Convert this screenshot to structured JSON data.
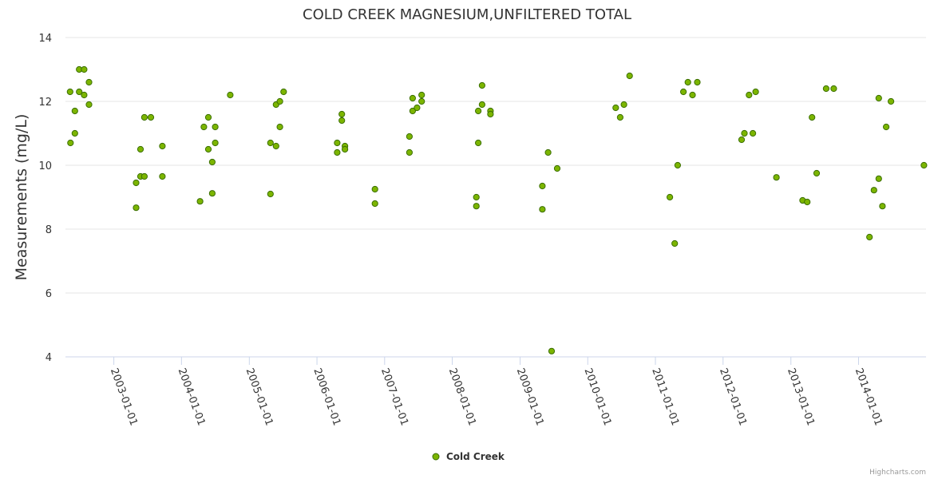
{
  "chart_data": {
    "type": "scatter",
    "title": "COLD CREEK MAGNESIUM,UNFILTERED TOTAL",
    "ylabel": "Measurements (mg/L)",
    "xlabel": "",
    "ylim": [
      4,
      14
    ],
    "yticks": [
      4,
      6,
      8,
      10,
      12,
      14
    ],
    "xlim": [
      "2002-04-15",
      "2014-12-31"
    ],
    "xticks": [
      "2003-01-01",
      "2004-01-01",
      "2005-01-01",
      "2006-01-01",
      "2007-01-01",
      "2008-01-01",
      "2009-01-01",
      "2010-01-01",
      "2011-01-01",
      "2012-01-01",
      "2013-01-01",
      "2014-01-01"
    ],
    "grid": true,
    "legend": "bottom-center",
    "series": [
      {
        "name": "Cold Creek",
        "color": "#7cb500",
        "marker_stroke": "#3a6e00",
        "points": [
          [
            "2002-05-10",
            12.3
          ],
          [
            "2002-05-12",
            10.7
          ],
          [
            "2002-06-05",
            11.7
          ],
          [
            "2002-06-05",
            11.0
          ],
          [
            "2002-06-28",
            13.0
          ],
          [
            "2002-06-28",
            12.3
          ],
          [
            "2002-07-25",
            13.0
          ],
          [
            "2002-07-25",
            12.2
          ],
          [
            "2002-08-20",
            12.6
          ],
          [
            "2002-08-20",
            11.9
          ],
          [
            "2003-05-01",
            9.45
          ],
          [
            "2003-05-01",
            8.67
          ],
          [
            "2003-05-25",
            10.5
          ],
          [
            "2003-05-25",
            9.65
          ],
          [
            "2003-06-15",
            11.5
          ],
          [
            "2003-06-15",
            9.65
          ],
          [
            "2003-07-20",
            11.5
          ],
          [
            "2003-09-20",
            10.6
          ],
          [
            "2003-09-20",
            9.65
          ],
          [
            "2004-04-10",
            8.87
          ],
          [
            "2004-05-01",
            11.2
          ],
          [
            "2004-05-25",
            11.5
          ],
          [
            "2004-05-25",
            10.5
          ],
          [
            "2004-06-15",
            10.1
          ],
          [
            "2004-06-15",
            9.12
          ],
          [
            "2004-07-01",
            11.2
          ],
          [
            "2004-07-01",
            10.7
          ],
          [
            "2004-09-20",
            12.2
          ],
          [
            "2005-04-25",
            10.7
          ],
          [
            "2005-04-25",
            9.1
          ],
          [
            "2005-05-25",
            11.9
          ],
          [
            "2005-05-25",
            10.6
          ],
          [
            "2005-06-15",
            12.0
          ],
          [
            "2005-06-15",
            11.2
          ],
          [
            "2005-07-05",
            12.3
          ],
          [
            "2006-04-20",
            10.7
          ],
          [
            "2006-04-20",
            10.4
          ],
          [
            "2006-05-15",
            11.6
          ],
          [
            "2006-05-15",
            11.4
          ],
          [
            "2006-06-01",
            10.6
          ],
          [
            "2006-06-01",
            10.5
          ],
          [
            "2006-11-10",
            9.25
          ],
          [
            "2006-11-10",
            8.8
          ],
          [
            "2007-05-15",
            10.9
          ],
          [
            "2007-05-15",
            10.4
          ],
          [
            "2007-06-01",
            12.1
          ],
          [
            "2007-06-01",
            11.7
          ],
          [
            "2007-06-25",
            11.8
          ],
          [
            "2007-07-20",
            12.2
          ],
          [
            "2007-07-20",
            12.0
          ],
          [
            "2008-05-10",
            9.0
          ],
          [
            "2008-05-10",
            8.72
          ],
          [
            "2008-05-20",
            11.7
          ],
          [
            "2008-05-20",
            10.7
          ],
          [
            "2008-06-10",
            12.5
          ],
          [
            "2008-06-10",
            11.9
          ],
          [
            "2008-07-25",
            11.7
          ],
          [
            "2008-07-25",
            11.6
          ],
          [
            "2009-05-01",
            9.35
          ],
          [
            "2009-05-01",
            8.62
          ],
          [
            "2009-06-01",
            10.4
          ],
          [
            "2009-06-20",
            4.18
          ],
          [
            "2009-07-20",
            9.9
          ],
          [
            "2010-06-01",
            11.8
          ],
          [
            "2010-06-25",
            11.5
          ],
          [
            "2010-07-15",
            11.9
          ],
          [
            "2010-08-15",
            12.8
          ],
          [
            "2011-03-20",
            9.0
          ],
          [
            "2011-04-15",
            7.55
          ],
          [
            "2011-05-01",
            10.0
          ],
          [
            "2011-06-01",
            12.3
          ],
          [
            "2011-06-25",
            12.6
          ],
          [
            "2011-07-20",
            12.2
          ],
          [
            "2011-08-15",
            12.6
          ],
          [
            "2012-04-10",
            10.8
          ],
          [
            "2012-04-25",
            11.0
          ],
          [
            "2012-05-20",
            12.2
          ],
          [
            "2012-06-10",
            11.0
          ],
          [
            "2012-06-25",
            12.3
          ],
          [
            "2012-10-15",
            9.62
          ],
          [
            "2013-03-05",
            8.9
          ],
          [
            "2013-03-30",
            8.85
          ],
          [
            "2013-04-25",
            11.5
          ],
          [
            "2013-05-20",
            9.75
          ],
          [
            "2013-07-10",
            12.4
          ],
          [
            "2013-08-20",
            12.4
          ],
          [
            "2014-03-01",
            7.75
          ],
          [
            "2014-03-25",
            9.22
          ],
          [
            "2014-04-20",
            12.1
          ],
          [
            "2014-04-20",
            9.58
          ],
          [
            "2014-05-10",
            8.72
          ],
          [
            "2014-05-30",
            11.2
          ],
          [
            "2014-06-25",
            12.0
          ],
          [
            "2014-12-20",
            10.0
          ]
        ]
      }
    ]
  },
  "credits": "Highcharts.com"
}
